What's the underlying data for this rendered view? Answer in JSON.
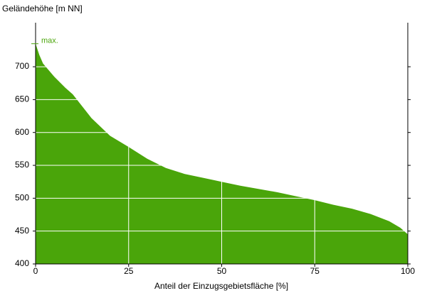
{
  "chart_data": {
    "type": "area",
    "y_label": "Geländehöhe [m NN]",
    "x_label": "Anteil der Einzugsgebietsfläche [%]",
    "annotation": "max.",
    "x": [
      0,
      1,
      2,
      5,
      8,
      10,
      15,
      20,
      25,
      30,
      35,
      40,
      45,
      50,
      55,
      60,
      65,
      70,
      75,
      80,
      85,
      90,
      95,
      98,
      100
    ],
    "series": [
      {
        "color": "#4aa50a",
        "values": [
          735,
          718,
          705,
          685,
          668,
          658,
          622,
          595,
          578,
          560,
          546,
          537,
          531,
          525,
          519,
          514,
          509,
          503,
          497,
          490,
          484,
          476,
          465,
          455,
          445
        ]
      }
    ],
    "xlim": [
      0,
      100
    ],
    "xticks": [
      0,
      25,
      50,
      75,
      100
    ],
    "ylim": [
      400,
      767
    ],
    "yticks": [
      400,
      450,
      500,
      550,
      600,
      650,
      700
    ],
    "grid": true
  }
}
